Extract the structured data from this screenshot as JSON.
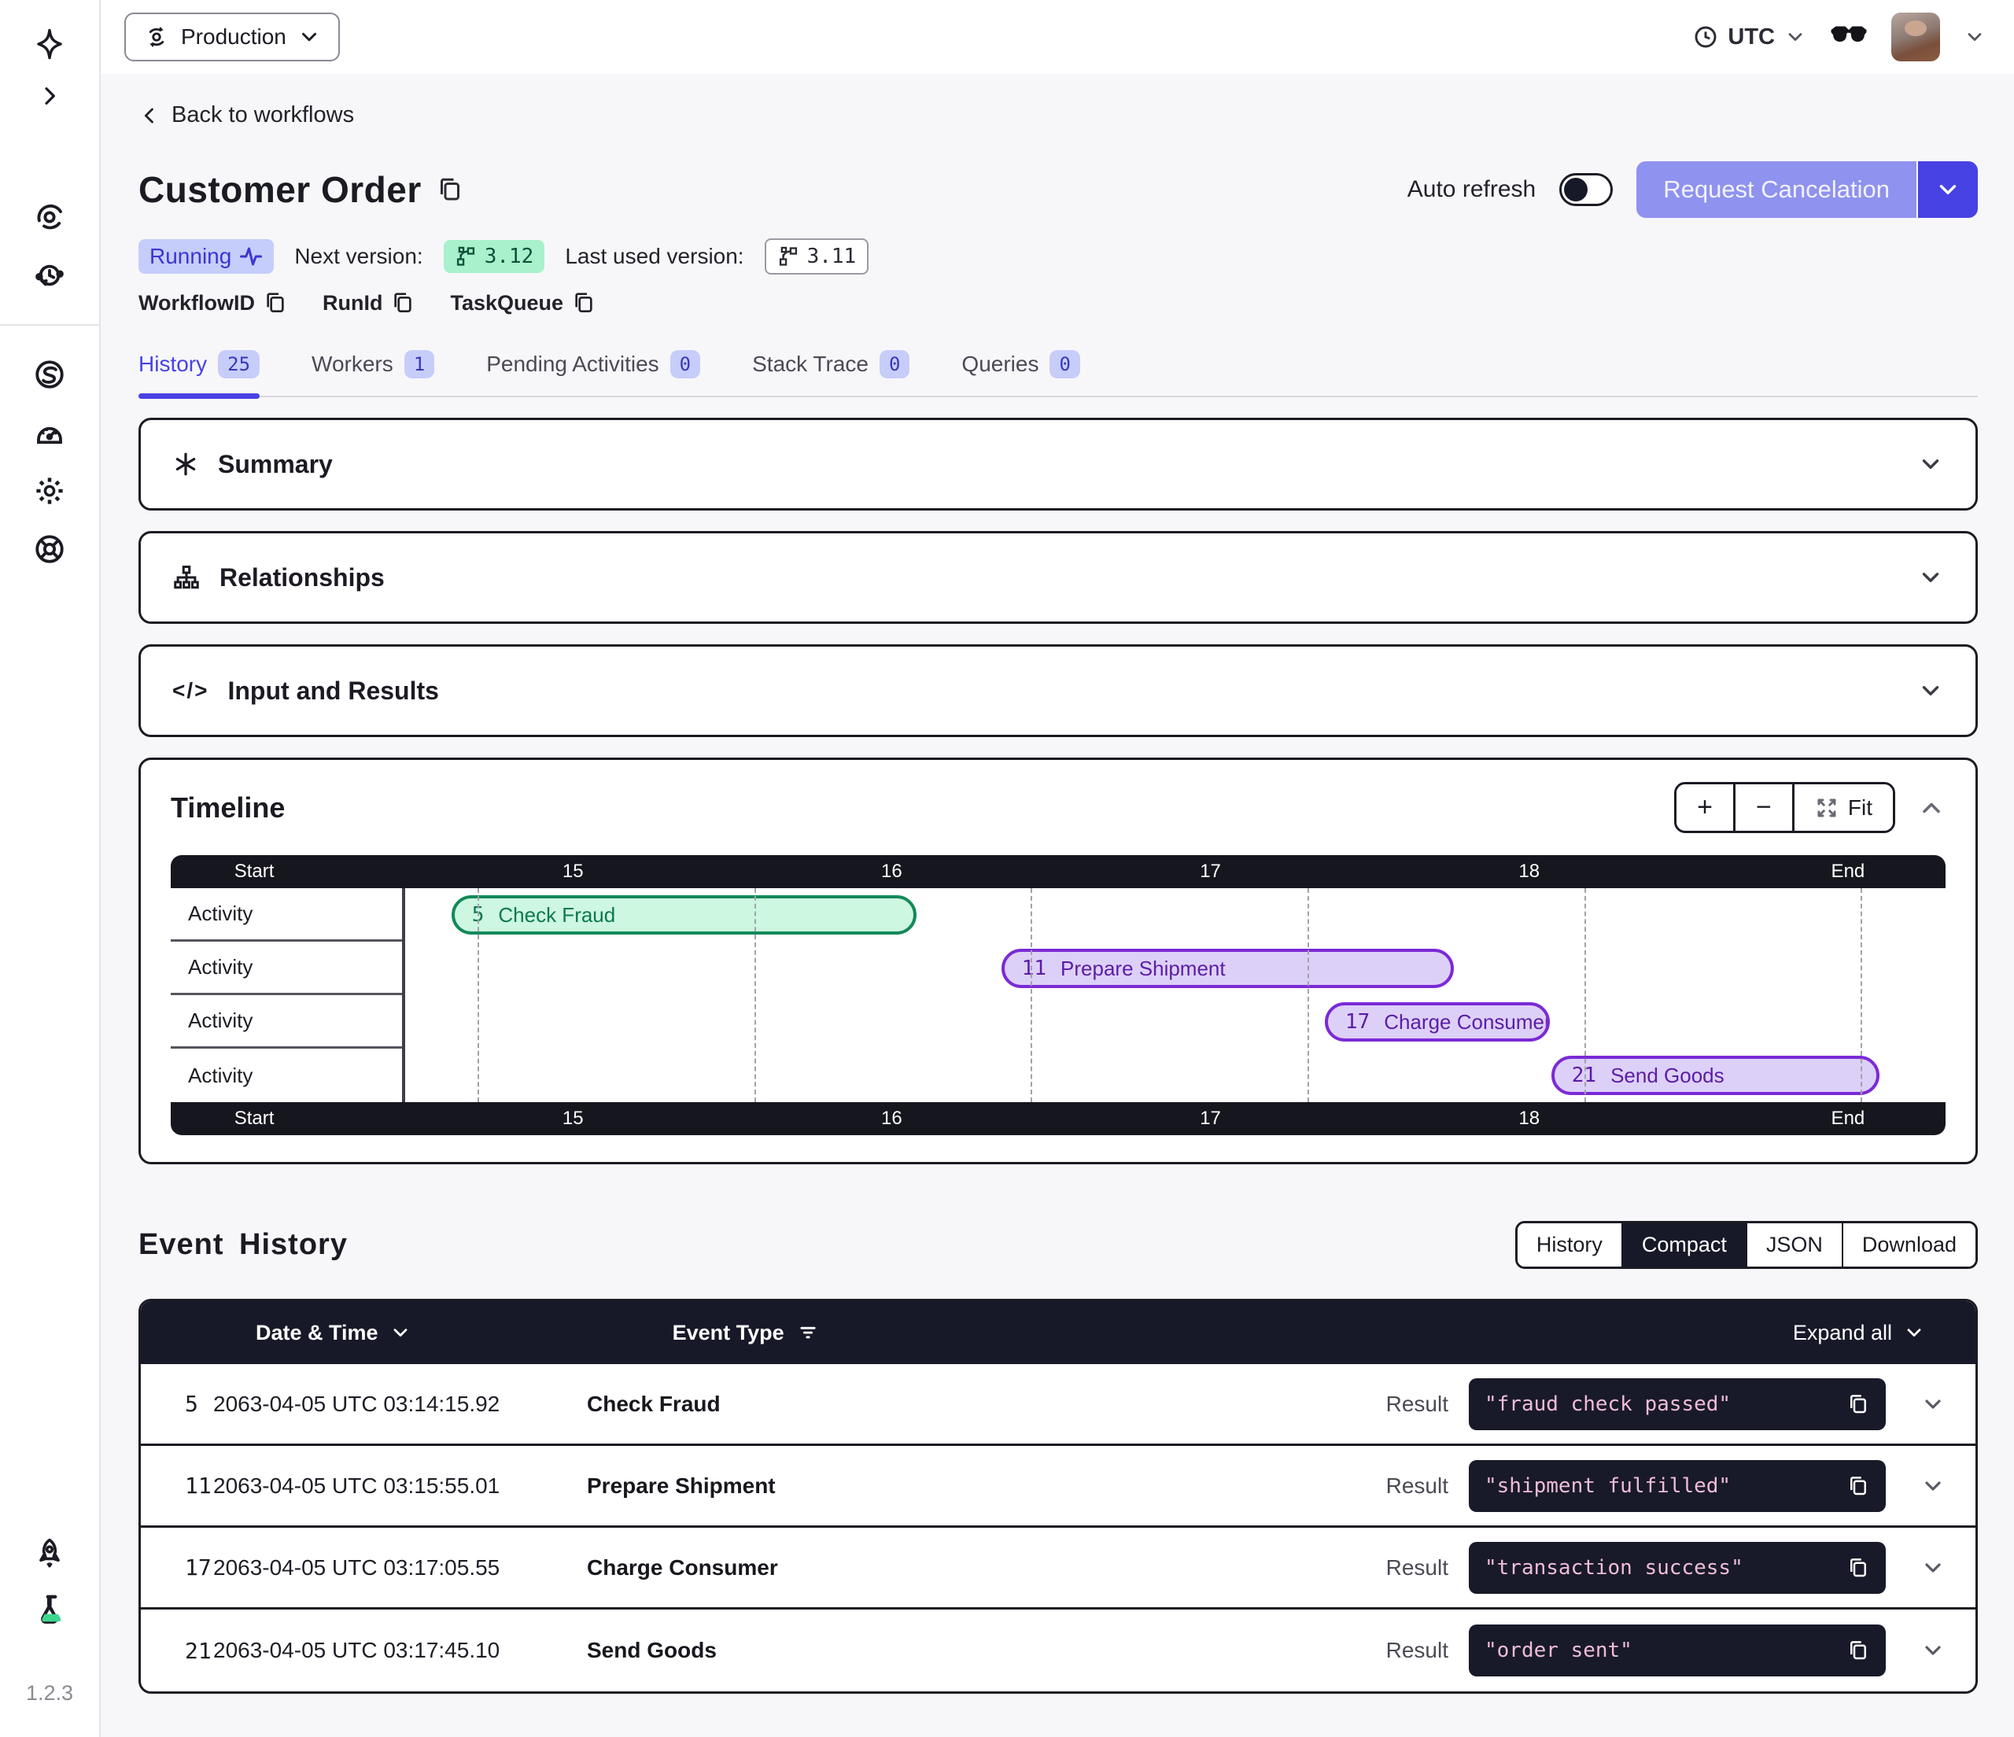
{
  "topbar": {
    "namespace": "Production",
    "timezone": "UTC"
  },
  "sidebar": {
    "version": "1.2.3",
    "icons": [
      "nav-star",
      "expand-chevron",
      "workflows-spiral",
      "schedules-clock",
      "nexus",
      "usage-gauge",
      "settings-gear",
      "support-lifebuoy",
      "rocket",
      "labs-flask"
    ]
  },
  "header": {
    "back_label": "Back to workflows",
    "title": "Customer Order",
    "status": "Running",
    "next_version_label": "Next version:",
    "next_version": "3.12",
    "last_used_version_label": "Last used version:",
    "last_used_version": "3.11",
    "workflow_id_label": "WorkflowID",
    "run_id_label": "RunId",
    "task_queue_label": "TaskQueue",
    "auto_refresh_label": "Auto refresh",
    "cancel_button_label": "Request Cancelation"
  },
  "tabs": [
    {
      "label": "History",
      "count": "25"
    },
    {
      "label": "Workers",
      "count": "1"
    },
    {
      "label": "Pending Activities",
      "count": "0"
    },
    {
      "label": "Stack Trace",
      "count": "0"
    },
    {
      "label": "Queries",
      "count": "0"
    }
  ],
  "accordions": [
    {
      "label": "Summary"
    },
    {
      "label": "Relationships"
    },
    {
      "label": "Input and Results"
    }
  ],
  "timeline": {
    "title": "Timeline",
    "fit_label": "Fit",
    "row_label": "Activity",
    "ticks": [
      "Start",
      "15",
      "16",
      "17",
      "18",
      "End"
    ],
    "tick_positions": [
      4.7,
      22.66,
      40.62,
      58.58,
      76.54,
      94.5
    ],
    "bars": [
      {
        "row": 0,
        "id": "5",
        "label": "Check Fraud",
        "color": "green",
        "left": 3.0,
        "width": 30.2
      },
      {
        "row": 1,
        "id": "11",
        "label": "Prepare Shipment",
        "color": "purple",
        "left": 38.7,
        "width": 29.4
      },
      {
        "row": 2,
        "id": "17",
        "label": "Charge Consumer",
        "color": "purple",
        "left": 59.7,
        "width": 14.6
      },
      {
        "row": 3,
        "id": "21",
        "label": "Send Goods",
        "color": "purple",
        "left": 74.4,
        "width": 21.3
      }
    ]
  },
  "event_history": {
    "title": "Event History",
    "view_modes": [
      "History",
      "Compact",
      "JSON",
      "Download"
    ],
    "active_mode": "Compact",
    "col_date": "Date & Time",
    "col_type": "Event Type",
    "expand_all_label": "Expand all",
    "result_label": "Result",
    "events": [
      {
        "id": "5",
        "time": "2063-04-05 UTC 03:14:15.92",
        "type": "Check Fraud",
        "result": "\"fraud check passed\""
      },
      {
        "id": "11",
        "time": "2063-04-05 UTC 03:15:55.01",
        "type": "Prepare Shipment",
        "result": "\"shipment fulfilled\""
      },
      {
        "id": "17",
        "time": "2063-04-05 UTC 03:17:05.55",
        "type": "Charge Consumer",
        "result": "\"transaction success\""
      },
      {
        "id": "21",
        "time": "2063-04-05 UTC 03:17:45.10",
        "type": "Send Goods",
        "result": "\"order sent\""
      }
    ]
  },
  "colors": {
    "accent_indigo": "#4843e3",
    "button_periwinkle": "#8f92ee",
    "running_badge": "#c5cdfb",
    "green_version": "#a9f1cd",
    "timeline_green": "#13895a",
    "timeline_purple": "#7b2ad6",
    "table_header": "#171929",
    "code_text_pink": "#f0bcd7"
  }
}
